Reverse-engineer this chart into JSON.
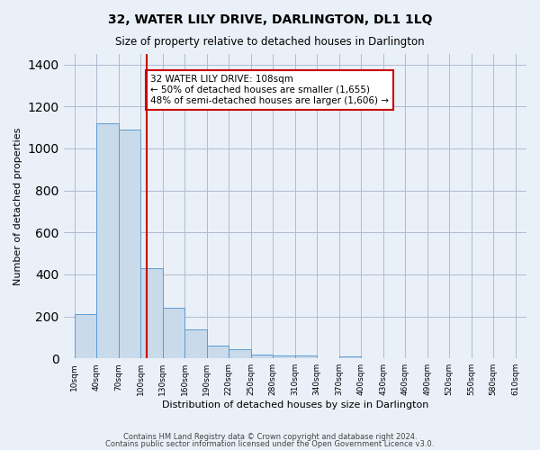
{
  "title": "32, WATER LILY DRIVE, DARLINGTON, DL1 1LQ",
  "subtitle": "Size of property relative to detached houses in Darlington",
  "xlabel": "Distribution of detached houses by size in Darlington",
  "ylabel": "Number of detached properties",
  "bins": [
    10,
    40,
    70,
    100,
    130,
    160,
    190,
    220,
    250,
    280,
    310,
    340,
    370,
    400,
    430,
    460,
    490,
    520,
    550,
    580,
    610
  ],
  "counts": [
    210,
    1120,
    1090,
    430,
    240,
    140,
    60,
    45,
    20,
    15,
    15,
    0,
    10,
    0,
    0,
    0,
    0,
    0,
    0,
    0
  ],
  "tick_labels": [
    "10sqm",
    "40sqm",
    "70sqm",
    "100sqm",
    "130sqm",
    "160sqm",
    "190sqm",
    "220sqm",
    "250sqm",
    "280sqm",
    "310sqm",
    "340sqm",
    "370sqm",
    "400sqm",
    "430sqm",
    "460sqm",
    "490sqm",
    "520sqm",
    "550sqm",
    "580sqm",
    "610sqm"
  ],
  "bar_fill": "#c9daea",
  "bar_edge": "#5b9bd5",
  "redline_x": 108,
  "annotation_text": "32 WATER LILY DRIVE: 108sqm\n← 50% of detached houses are smaller (1,655)\n48% of semi-detached houses are larger (1,606) →",
  "annotation_box_edge": "#cc0000",
  "annotation_box_fill": "#ffffff",
  "redline_color": "#cc0000",
  "ylim": [
    0,
    1450
  ],
  "yticks": [
    0,
    200,
    400,
    600,
    800,
    1000,
    1200,
    1400
  ],
  "bg_color": "#eaf0f8",
  "plot_bg": "#eaf0f8",
  "footer1": "Contains HM Land Registry data © Crown copyright and database right 2024.",
  "footer2": "Contains public sector information licensed under the Open Government Licence v3.0."
}
